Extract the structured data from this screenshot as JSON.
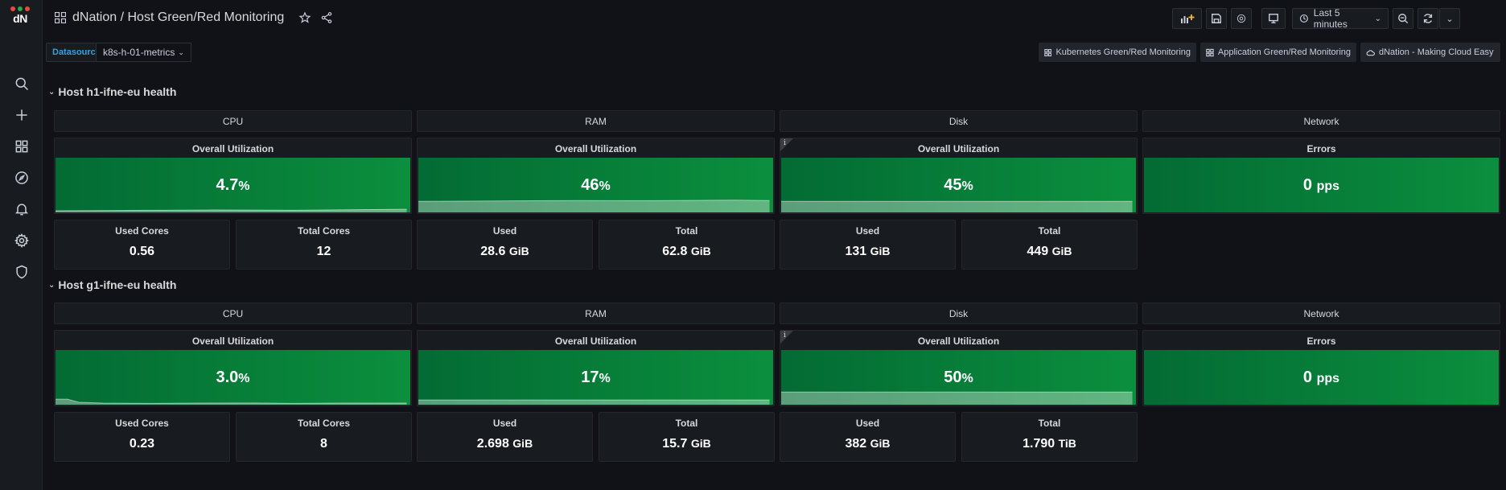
{
  "app": {
    "logo_text": "dN",
    "logo_dot_colors": [
      "#e64b3c",
      "#2aa64e",
      "#e64b3c"
    ],
    "breadcrumb": "dNation / Host Green/Red Monitoring"
  },
  "sidebar": {
    "icons": [
      "search-icon",
      "plus-icon",
      "dashboards-icon",
      "explore-icon",
      "alerting-icon",
      "configuration-icon",
      "shield-icon"
    ]
  },
  "toolbar": {
    "time_range": "Last 5 minutes"
  },
  "variables": {
    "label": "Datasource",
    "value": "k8s-h-01-metrics"
  },
  "links": [
    {
      "label": "Kubernetes Green/Red Monitoring",
      "icon": "apps-icon"
    },
    {
      "label": "Application Green/Red Monitoring",
      "icon": "apps-icon"
    },
    {
      "label": "dNation - Making Cloud Easy",
      "icon": "cloud-icon"
    }
  ],
  "colors": {
    "stat_green_dark": "#036b34",
    "stat_green_light": "#0b8f3d",
    "accent_blue": "#33a2e5"
  },
  "hosts": [
    {
      "title": "Host h1-ifne-eu health",
      "sections": [
        "CPU",
        "RAM",
        "Disk",
        "Network"
      ],
      "cpu": {
        "title": "Overall Utilization",
        "value": "4.7",
        "unit": "%",
        "used_label": "Used Cores",
        "used": "0.56",
        "total_label": "Total Cores",
        "total": "12"
      },
      "ram": {
        "title": "Overall Utilization",
        "value": "46",
        "unit": "%",
        "used_label": "Used",
        "used": "28.6",
        "used_unit": "GiB",
        "total_label": "Total",
        "total": "62.8",
        "total_unit": "GiB"
      },
      "disk": {
        "title": "Overall Utilization",
        "value": "45",
        "unit": "%",
        "used_label": "Used",
        "used": "131",
        "used_unit": "GiB",
        "total_label": "Total",
        "total": "449",
        "total_unit": "GiB"
      },
      "network": {
        "title": "Errors",
        "value": "0",
        "unit": "pps"
      }
    },
    {
      "title": "Host g1-ifne-eu health",
      "sections": [
        "CPU",
        "RAM",
        "Disk",
        "Network"
      ],
      "cpu": {
        "title": "Overall Utilization",
        "value": "3.0",
        "unit": "%",
        "used_label": "Used Cores",
        "used": "0.23",
        "total_label": "Total Cores",
        "total": "8"
      },
      "ram": {
        "title": "Overall Utilization",
        "value": "17",
        "unit": "%",
        "used_label": "Used",
        "used": "2.698",
        "used_unit": "GiB",
        "total_label": "Total",
        "total": "15.7",
        "total_unit": "GiB"
      },
      "disk": {
        "title": "Overall Utilization",
        "value": "50",
        "unit": "%",
        "used_label": "Used",
        "used": "382",
        "used_unit": "GiB",
        "total_label": "Total",
        "total": "1.790",
        "total_unit": "TiB"
      },
      "network": {
        "title": "Errors",
        "value": "0",
        "unit": "pps"
      }
    }
  ]
}
